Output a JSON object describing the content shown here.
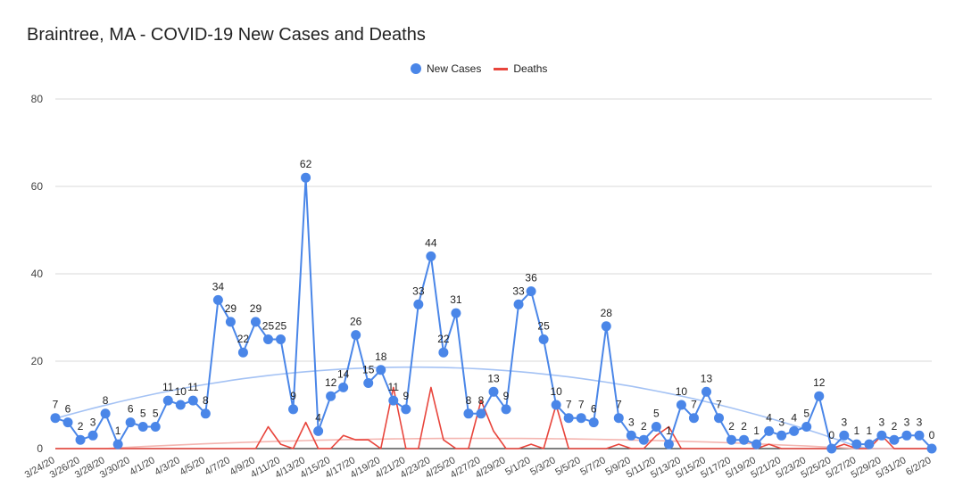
{
  "chart_data": {
    "type": "line",
    "title": "Braintree, MA - COVID-19 New Cases and Deaths",
    "ylim": [
      0,
      80
    ],
    "yticks": [
      0,
      20,
      40,
      60,
      80
    ],
    "grid": true,
    "legend_position": "top-center",
    "x": [
      "3/24/20",
      "3/25/20",
      "3/26/20",
      "3/27/20",
      "3/28/20",
      "3/29/20",
      "3/30/20",
      "3/31/20",
      "4/1/20",
      "4/2/20",
      "4/3/20",
      "4/4/20",
      "4/5/20",
      "4/6/20",
      "4/7/20",
      "4/8/20",
      "4/9/20",
      "4/10/20",
      "4/11/20",
      "4/12/20",
      "4/13/20",
      "4/14/20",
      "4/15/20",
      "4/16/20",
      "4/17/20",
      "4/18/20",
      "4/19/20",
      "4/20/20",
      "4/21/20",
      "4/22/20",
      "4/23/20",
      "4/24/20",
      "4/25/20",
      "4/26/20",
      "4/27/20",
      "4/28/20",
      "4/29/20",
      "4/30/20",
      "5/1/20",
      "5/2/20",
      "5/3/20",
      "5/4/20",
      "5/5/20",
      "5/6/20",
      "5/7/20",
      "5/8/20",
      "5/9/20",
      "5/10/20",
      "5/11/20",
      "5/12/20",
      "5/13/20",
      "5/14/20",
      "5/15/20",
      "5/16/20",
      "5/17/20",
      "5/18/20",
      "5/19/20",
      "5/20/20",
      "5/21/20",
      "5/22/20",
      "5/23/20",
      "5/24/20",
      "5/25/20",
      "5/26/20",
      "5/27/20",
      "5/28/20",
      "5/29/20",
      "5/30/20",
      "5/31/20",
      "6/1/20",
      "6/2/20"
    ],
    "xtick_labels": [
      "3/24/20",
      "3/26/20",
      "3/28/20",
      "3/30/20",
      "4/1/20",
      "4/3/20",
      "4/5/20",
      "4/7/20",
      "4/9/20",
      "4/11/20",
      "4/13/20",
      "4/15/20",
      "4/17/20",
      "4/19/20",
      "4/21/20",
      "4/23/20",
      "4/25/20",
      "4/27/20",
      "4/29/20",
      "5/1/20",
      "5/3/20",
      "5/5/20",
      "5/7/20",
      "5/9/20",
      "5/11/20",
      "5/13/20",
      "5/15/20",
      "5/17/20",
      "5/19/20",
      "5/21/20",
      "5/23/20",
      "5/25/20",
      "5/27/20",
      "5/29/20",
      "5/31/20",
      "6/2/20"
    ],
    "series": [
      {
        "name": "New Cases",
        "color": "#4a86e8",
        "marker": "circle",
        "data_labels": true,
        "values": [
          7,
          6,
          2,
          3,
          8,
          1,
          6,
          5,
          5,
          11,
          10,
          11,
          8,
          34,
          29,
          22,
          29,
          25,
          25,
          9,
          62,
          4,
          12,
          14,
          26,
          15,
          18,
          11,
          9,
          33,
          44,
          22,
          31,
          8,
          8,
          13,
          9,
          33,
          36,
          25,
          10,
          7,
          7,
          6,
          28,
          7,
          3,
          2,
          5,
          1,
          10,
          7,
          13,
          7,
          2,
          2,
          1,
          4,
          3,
          4,
          5,
          12,
          0,
          3,
          1,
          1,
          3,
          2,
          3,
          3,
          0
        ]
      },
      {
        "name": "Deaths",
        "color": "#e8453c",
        "marker": "none",
        "data_labels": false,
        "values": [
          0,
          0,
          0,
          0,
          0,
          0,
          0,
          0,
          0,
          0,
          0,
          0,
          0,
          0,
          0,
          0,
          0,
          5,
          1,
          0,
          6,
          0,
          0,
          3,
          2,
          2,
          0,
          14,
          0,
          0,
          14,
          2,
          0,
          0,
          11,
          4,
          0,
          0,
          1,
          0,
          10,
          0,
          0,
          0,
          0,
          1,
          0,
          0,
          3,
          5,
          0,
          0,
          0,
          0,
          0,
          0,
          0,
          1,
          0,
          0,
          0,
          0,
          0,
          1,
          0,
          0,
          3,
          0,
          0,
          0,
          0
        ]
      }
    ],
    "trendlines": [
      {
        "series": "New Cases",
        "color": "#a4c2f4"
      },
      {
        "series": "Deaths",
        "color": "#f4b5b0"
      }
    ]
  }
}
